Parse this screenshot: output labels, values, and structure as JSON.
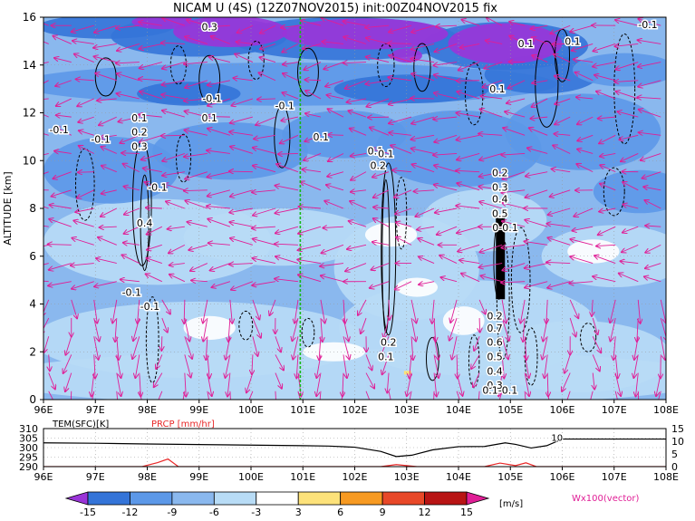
{
  "title": "NICAM U (4S) (12Z07NOV2015) init:00Z04NOV2015 fix",
  "colors": {
    "purple": "#9a34d8",
    "blue_dark": "#3474d8",
    "blue_mid": "#5c98e8",
    "blue_light": "#8ab8ee",
    "blue_pale": "#b8dcf6",
    "white": "#ffffff",
    "yellow": "#fde27a",
    "orange": "#f79a22",
    "red": "#e84828",
    "dark_red": "#b81414",
    "magenta_vec": "#e01e96",
    "green_line": "#18b818",
    "temp_line": "#000000",
    "prcp_line": "#e82828"
  },
  "chart_data": [
    {
      "type": "heatmap",
      "title": "NICAM U (4S) (12Z07NOV2015) init:00Z04NOV2015 fix",
      "xlabel": "",
      "ylabel": "ALTITUDE [km]",
      "x_ticks": [
        "96E",
        "97E",
        "98E",
        "99E",
        "100E",
        "101E",
        "102E",
        "103E",
        "104E",
        "105E",
        "106E",
        "107E",
        "108E"
      ],
      "x_range": [
        96,
        108
      ],
      "y_ticks": [
        "0",
        "2",
        "4",
        "6",
        "8",
        "10",
        "12",
        "14",
        "16"
      ],
      "y_range": [
        0,
        16
      ],
      "units": "[m/s]",
      "vector_label": "Wx100(vector)",
      "colorbar_levels": [
        -15,
        -12,
        -9,
        -6,
        -3,
        3,
        6,
        9,
        12,
        15
      ],
      "colorbar_labels": [
        "-15",
        "-12",
        "-9",
        "-6",
        "-3",
        "3",
        "6",
        "9",
        "12",
        "15"
      ],
      "marker_line_lon": 100.95,
      "contour_labels": [
        {
          "text": "-0.1",
          "lon": 96.3,
          "alt": 11.3
        },
        {
          "text": "-0.1",
          "lon": 97.1,
          "alt": 10.9
        },
        {
          "text": "0.1",
          "lon": 97.85,
          "alt": 11.8
        },
        {
          "text": "0.2",
          "lon": 97.85,
          "alt": 11.2
        },
        {
          "text": "0.3",
          "lon": 97.85,
          "alt": 10.6
        },
        {
          "text": "-0.1",
          "lon": 98.2,
          "alt": 8.9
        },
        {
          "text": "0.4",
          "lon": 97.95,
          "alt": 7.4
        },
        {
          "text": "-0.1",
          "lon": 97.7,
          "alt": 4.5
        },
        {
          "text": "-0.1",
          "lon": 98.05,
          "alt": 3.9
        },
        {
          "text": "-0.1",
          "lon": 99.25,
          "alt": 12.6
        },
        {
          "text": "0.1",
          "lon": 99.2,
          "alt": 11.8
        },
        {
          "text": "0.3",
          "lon": 99.2,
          "alt": 15.6
        },
        {
          "text": "-0.1",
          "lon": 100.65,
          "alt": 12.3
        },
        {
          "text": "0.1",
          "lon": 101.35,
          "alt": 11.0
        },
        {
          "text": "0.1",
          "lon": 102.4,
          "alt": 10.4
        },
        {
          "text": "0.1",
          "lon": 102.6,
          "alt": 10.3
        },
        {
          "text": "0.2",
          "lon": 102.45,
          "alt": 9.8
        },
        {
          "text": "0.2",
          "lon": 102.65,
          "alt": 2.4
        },
        {
          "text": "0.1",
          "lon": 102.6,
          "alt": 1.8
        },
        {
          "text": "0.1",
          "lon": 104.75,
          "alt": 13.0
        },
        {
          "text": "0.2",
          "lon": 104.8,
          "alt": 9.5
        },
        {
          "text": "0.3",
          "lon": 104.8,
          "alt": 8.9
        },
        {
          "text": "0.4",
          "lon": 104.8,
          "alt": 8.4
        },
        {
          "text": "0.5",
          "lon": 104.8,
          "alt": 7.8
        },
        {
          "text": "0-0.1",
          "lon": 104.9,
          "alt": 7.2
        },
        {
          "text": "0.2",
          "lon": 104.7,
          "alt": 3.5
        },
        {
          "text": "0.7",
          "lon": 104.7,
          "alt": 3.0
        },
        {
          "text": "0.6",
          "lon": 104.7,
          "alt": 2.4
        },
        {
          "text": "0.5",
          "lon": 104.7,
          "alt": 1.8
        },
        {
          "text": "0.4",
          "lon": 104.7,
          "alt": 1.2
        },
        {
          "text": "0.3",
          "lon": 104.7,
          "alt": 0.6
        },
        {
          "text": "0.1-0.1",
          "lon": 104.8,
          "alt": 0.4
        },
        {
          "text": "0.1",
          "lon": 105.3,
          "alt": 14.9
        },
        {
          "text": "0.1",
          "lon": 106.2,
          "alt": 15.0
        },
        {
          "text": "-0.1",
          "lon": 107.65,
          "alt": 15.7
        }
      ]
    },
    {
      "type": "line",
      "x_range": [
        96,
        108
      ],
      "x_ticks": [
        "96E",
        "97E",
        "98E",
        "99E",
        "100E",
        "101E",
        "102E",
        "103E",
        "104E",
        "105E",
        "106E",
        "107E",
        "108E"
      ],
      "left_axis_title": "TEM(SFC)[K]",
      "right_axis_title": "PRCP [mm/hr]",
      "left_ticks": [
        "310",
        "305",
        "300",
        "295",
        "290"
      ],
      "left_range": [
        290,
        310
      ],
      "right_ticks": [
        "15",
        "10",
        "5",
        "0"
      ],
      "right_range": [
        0,
        15
      ],
      "marker_label": "10",
      "series": [
        {
          "name": "TEM(SFC)[K]",
          "axis": "left",
          "x": [
            96,
            97,
            98,
            99,
            100,
            101,
            101.5,
            102,
            102.5,
            102.8,
            103.1,
            103.5,
            104,
            104.5,
            104.9,
            105.1,
            105.4,
            105.7,
            106,
            108
          ],
          "values": [
            302.5,
            302.3,
            301.9,
            301.6,
            301.3,
            301.0,
            300.8,
            300.2,
            298.0,
            295.3,
            296.0,
            298.8,
            300.5,
            300.6,
            302.5,
            301.7,
            299.8,
            301.0,
            304.5,
            304.5
          ]
        },
        {
          "name": "PRCP [mm/hr]",
          "axis": "right",
          "x": [
            96,
            97.9,
            98.2,
            98.4,
            98.6,
            102.5,
            102.8,
            103.2,
            104.5,
            104.8,
            105.1,
            105.3,
            105.5,
            108
          ],
          "values": [
            0,
            0,
            1.6,
            3.0,
            0,
            0,
            0.8,
            0,
            0,
            1.4,
            0.4,
            1.5,
            0,
            0
          ]
        }
      ]
    }
  ]
}
